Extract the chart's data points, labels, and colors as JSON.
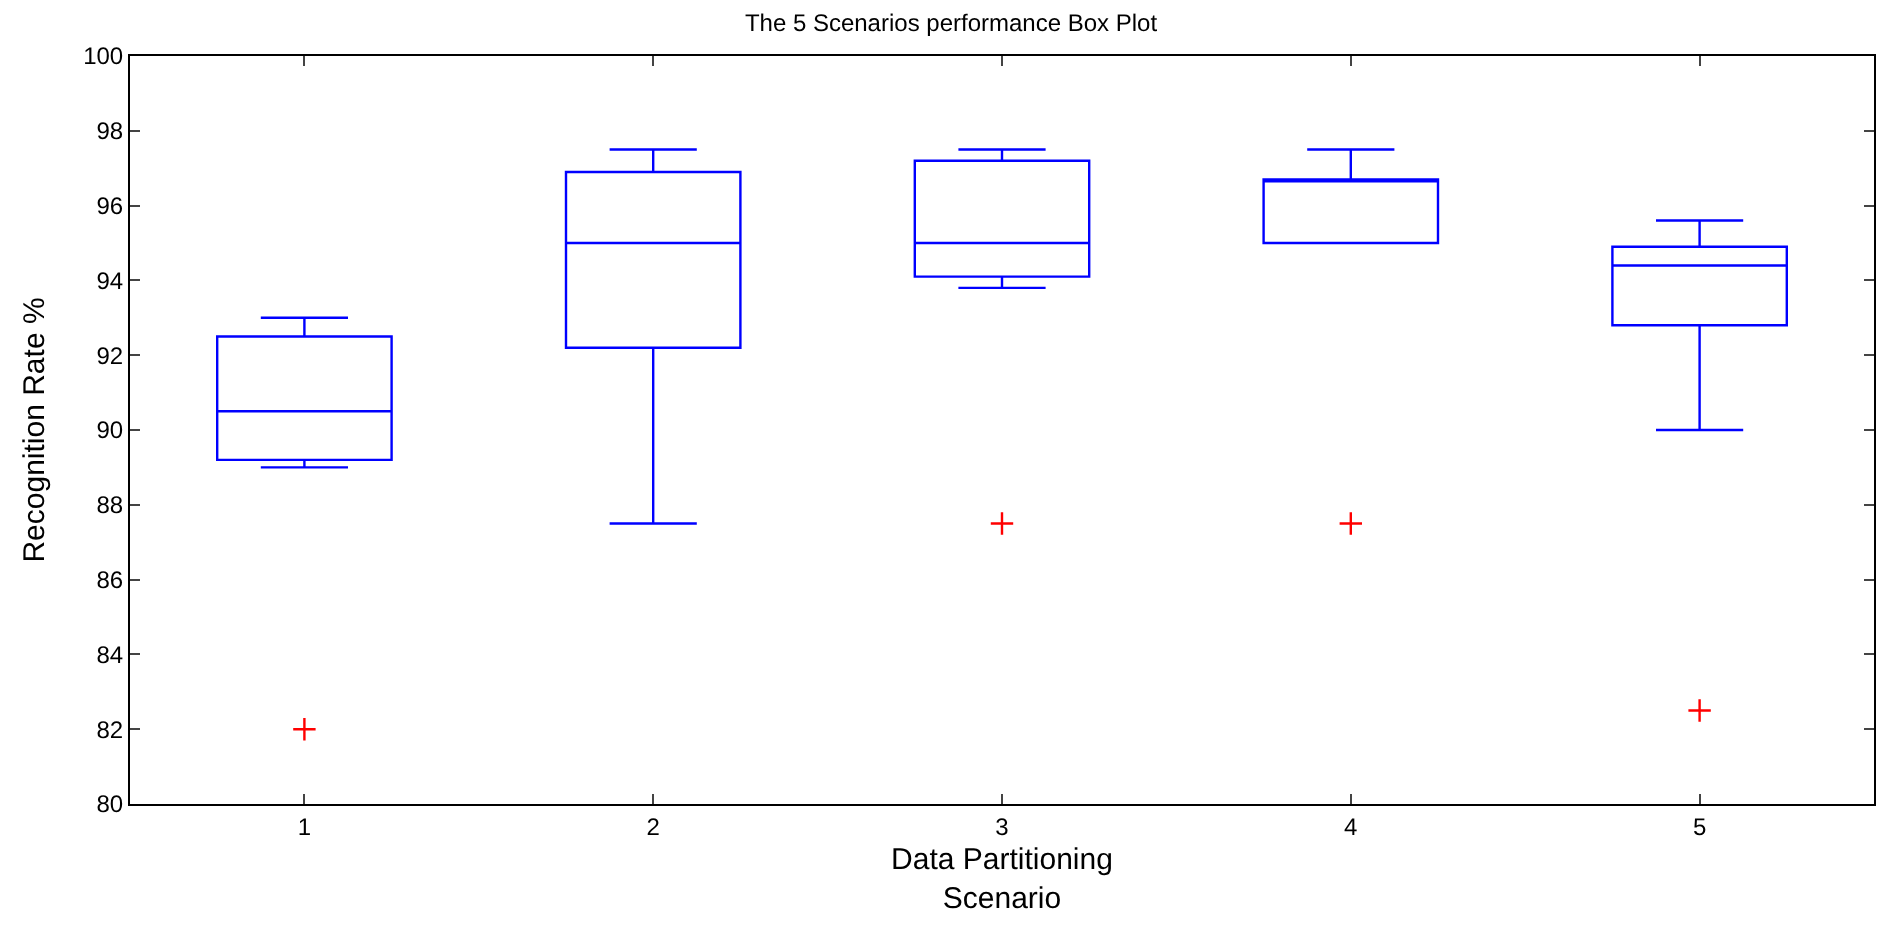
{
  "chart_data": {
    "type": "box",
    "title": "The 5 Scenarios performance Box Plot",
    "xlabel": "Data Partitioning\nScenario",
    "ylabel": "Recognition Rate %",
    "categories": [
      "1",
      "2",
      "3",
      "4",
      "5"
    ],
    "series": [
      {
        "color": "#0000ff",
        "boxes": [
          {
            "low": 89.0,
            "q1": 89.2,
            "median": 90.5,
            "q3": 92.5,
            "high": 93.0
          },
          {
            "low": 87.5,
            "q1": 92.2,
            "median": 95.0,
            "q3": 96.9,
            "high": 97.5
          },
          {
            "low": 93.8,
            "q1": 94.1,
            "median": 95.0,
            "q3": 97.2,
            "high": 97.5
          },
          {
            "low": 95.0,
            "q1": 95.0,
            "median": 96.7,
            "q3": 96.7,
            "high": 97.5
          },
          {
            "low": 90.0,
            "q1": 92.8,
            "median": 94.4,
            "q3": 94.9,
            "high": 95.6
          }
        ]
      },
      {
        "type": "scatter",
        "color": "#ff0000",
        "marker": "cross",
        "x": [
          "1",
          "3",
          "4",
          "5"
        ],
        "values": [
          82.0,
          87.5,
          87.5,
          82.5
        ]
      }
    ],
    "ylim": [
      80,
      100
    ],
    "yticks": [
      80,
      82,
      84,
      86,
      88,
      90,
      92,
      94,
      96,
      98,
      100
    ]
  }
}
